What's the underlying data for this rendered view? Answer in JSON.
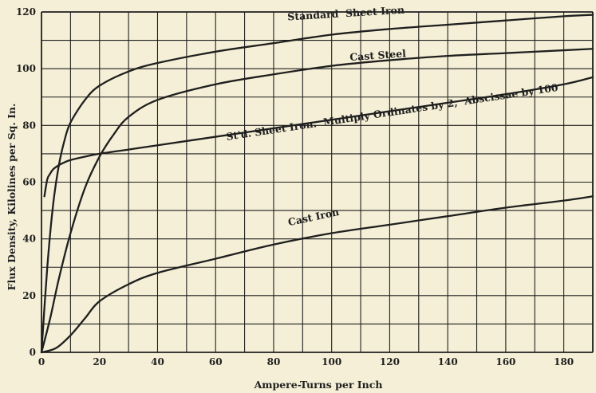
{
  "chart_data": {
    "type": "line",
    "title": "",
    "xlabel": "Ampere-Turns per Inch",
    "ylabel": "Flux Density, Kilolines per Sq. In.",
    "xlim": [
      0,
      190
    ],
    "ylim": [
      0,
      120
    ],
    "x_ticks": [
      0,
      20,
      40,
      60,
      80,
      100,
      120,
      140,
      160,
      180
    ],
    "y_ticks": [
      0,
      20,
      40,
      60,
      80,
      100,
      120
    ],
    "x_grid_step": 10,
    "y_grid_step": 10,
    "grid": true,
    "colors": {
      "background": "#f4efd6",
      "ink": "#1f1f1f"
    },
    "series": [
      {
        "name": "Standard Sheet Iron",
        "x": [
          0,
          2,
          4,
          6,
          8,
          10,
          15,
          20,
          30,
          40,
          60,
          80,
          100,
          120,
          140,
          160,
          180,
          190
        ],
        "y": [
          0,
          30,
          52,
          66,
          75,
          81,
          89,
          94,
          99,
          102,
          106,
          109,
          112,
          114,
          115.5,
          117,
          118.5,
          119
        ]
      },
      {
        "name": "Cast Steel",
        "x": [
          0,
          3,
          6,
          10,
          15,
          20,
          25,
          30,
          40,
          60,
          80,
          100,
          120,
          140,
          160,
          180,
          190
        ],
        "y": [
          0,
          12,
          26,
          42,
          58,
          69,
          77,
          83,
          89,
          94.5,
          98,
          101,
          103,
          104.5,
          105.5,
          106.5,
          107
        ]
      },
      {
        "name": "St'd. Sheet Iron. Multiply Ordinates by 2, Abscissae by 100",
        "x": [
          1,
          2,
          3,
          4,
          6,
          8,
          10,
          15,
          20,
          30,
          40,
          60,
          80,
          100,
          120,
          140,
          160,
          180,
          190
        ],
        "y": [
          55,
          61,
          63,
          64.5,
          66,
          67,
          67.8,
          69,
          70,
          71.5,
          73,
          76,
          79,
          82,
          85,
          88,
          91,
          94.5,
          97
        ]
      },
      {
        "name": "Cast Iron",
        "x": [
          0,
          5,
          10,
          15,
          20,
          30,
          40,
          60,
          80,
          100,
          120,
          140,
          160,
          180,
          190
        ],
        "y": [
          0,
          1.5,
          6,
          12,
          18,
          24,
          28,
          33,
          38,
          42,
          45,
          48,
          51,
          53.5,
          55
        ]
      }
    ],
    "annotations": [
      {
        "text": "Standard  Sheet Iron",
        "series": 0
      },
      {
        "text": "Cast Steel",
        "series": 1
      },
      {
        "text": "St'd. Sheet Iron.  Multiply Ordinates by 2,  Abscissae by 100",
        "series": 2
      },
      {
        "text": "Cast Iron",
        "series": 3
      }
    ]
  }
}
